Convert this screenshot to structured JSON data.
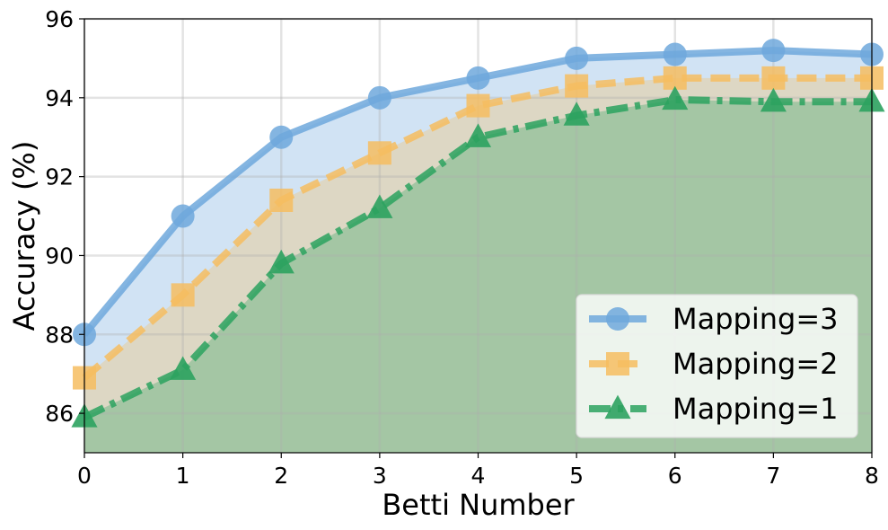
{
  "chart_data": {
    "type": "line",
    "xlabel": "Betti Number",
    "ylabel": "Accuracy (%)",
    "xlim": [
      0,
      8
    ],
    "ylim": [
      85,
      96
    ],
    "x_ticks": [
      0,
      1,
      2,
      3,
      4,
      5,
      6,
      7,
      8
    ],
    "y_ticks": [
      86,
      88,
      90,
      92,
      94,
      96
    ],
    "grid": true,
    "legend_position": "lower-right",
    "fill_under_lines": true,
    "x": [
      0,
      1,
      2,
      3,
      4,
      5,
      6,
      7,
      8
    ],
    "series": [
      {
        "name": "Mapping=3",
        "values": [
          88.0,
          91.0,
          93.0,
          94.0,
          94.5,
          95.0,
          95.1,
          95.2,
          95.1
        ],
        "color": "#6fa8dc",
        "marker": "circle",
        "linestyle": "solid"
      },
      {
        "name": "Mapping=2",
        "values": [
          86.9,
          89.0,
          91.4,
          92.6,
          93.8,
          94.3,
          94.5,
          94.5,
          94.5
        ],
        "color": "#f6bd60",
        "marker": "square",
        "linestyle": "dashed"
      },
      {
        "name": "Mapping=1",
        "values": [
          85.9,
          87.1,
          89.8,
          91.2,
          93.0,
          93.55,
          93.95,
          93.9,
          93.9
        ],
        "color": "#2ca25f",
        "marker": "triangle",
        "linestyle": "dashdot"
      }
    ]
  }
}
